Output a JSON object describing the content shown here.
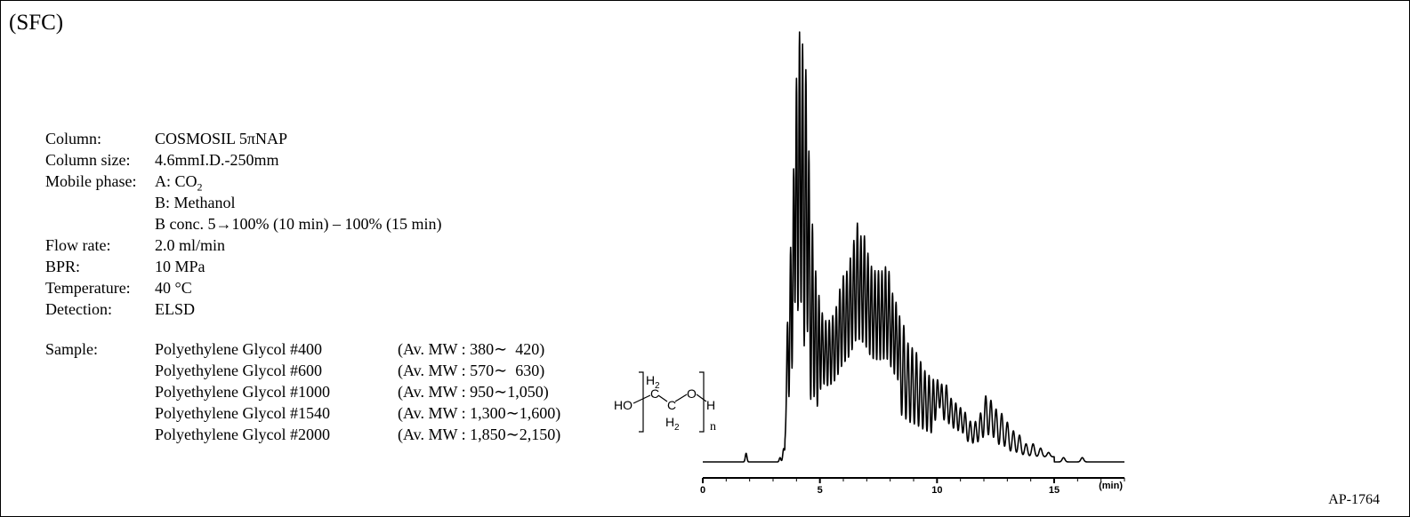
{
  "page_title": "(SFC)",
  "ref_code": "AP-1764",
  "conditions": [
    {
      "label": "Column:",
      "value": "COSMOSIL  5πNAP"
    },
    {
      "label": "Column size:",
      "value": "4.6mmI.D.-250mm"
    },
    {
      "label": "Mobile phase:",
      "value": "A: CO",
      "sub": "2"
    },
    {
      "label": "",
      "value": "B: Methanol"
    },
    {
      "label": "",
      "value": "B conc. 5→100% (10 min) – 100% (15 min)"
    },
    {
      "label": "Flow rate:",
      "value": "2.0 ml/min"
    },
    {
      "label": "BPR:",
      "value": "10 MPa"
    },
    {
      "label": "Temperature:",
      "value": "40 °C"
    },
    {
      "label": "Detection:",
      "value": "ELSD"
    }
  ],
  "sample_label": "Sample:",
  "samples": [
    {
      "name": "Polyethylene Glycol #400",
      "mw": "(Av. MW : 380∼  420)"
    },
    {
      "name": "Polyethylene Glycol #600",
      "mw": "(Av. MW : 570∼  630)"
    },
    {
      "name": "Polyethylene Glycol #1000",
      "mw": "(Av. MW : 950∼1,050)"
    },
    {
      "name": "Polyethylene Glycol #1540",
      "mw": "(Av. MW : 1,300∼1,600)"
    },
    {
      "name": "Polyethylene Glycol #2000",
      "mw": "(Av. MW : 1,850∼2,150)"
    }
  ],
  "structure": {
    "ho": "HO",
    "top_ch2": "H",
    "top_ch2_sub": "2",
    "c": "C",
    "o": "O",
    "bottom_ch2": "H",
    "bottom_ch2_sub": "2",
    "h": "H",
    "n": "n"
  },
  "chart_data": {
    "type": "line",
    "title": "",
    "xlabel": "(min)",
    "ylabel": "",
    "xlim": [
      0,
      18
    ],
    "ylim": [
      0,
      1
    ],
    "grid": false,
    "x_ticks": [
      0,
      5,
      10,
      15
    ],
    "series": [
      {
        "points": [
          [
            0,
            0.0
          ],
          [
            1.85,
            0.02
          ],
          [
            2.0,
            0.0
          ],
          [
            3.3,
            0.01
          ],
          [
            3.45,
            0.03
          ],
          [
            3.55,
            0.05
          ],
          [
            3.62,
            0.3
          ],
          [
            3.75,
            0.48
          ],
          [
            3.88,
            0.66
          ],
          [
            4.0,
            0.87
          ],
          [
            4.13,
            0.98
          ],
          [
            4.26,
            0.95
          ],
          [
            4.4,
            0.89
          ],
          [
            4.53,
            0.7
          ],
          [
            4.68,
            0.53
          ],
          [
            4.82,
            0.42
          ],
          [
            4.96,
            0.36
          ],
          [
            5.1,
            0.32
          ],
          [
            5.25,
            0.3
          ],
          [
            5.4,
            0.3
          ],
          [
            5.55,
            0.31
          ],
          [
            5.7,
            0.33
          ],
          [
            5.85,
            0.37
          ],
          [
            6.0,
            0.4
          ],
          [
            6.15,
            0.41
          ],
          [
            6.3,
            0.44
          ],
          [
            6.45,
            0.48
          ],
          [
            6.6,
            0.52
          ],
          [
            6.75,
            0.49
          ],
          [
            6.9,
            0.49
          ],
          [
            7.05,
            0.45
          ],
          [
            7.2,
            0.42
          ],
          [
            7.35,
            0.41
          ],
          [
            7.5,
            0.41
          ],
          [
            7.65,
            0.41
          ],
          [
            7.8,
            0.42
          ],
          [
            7.95,
            0.41
          ],
          [
            8.1,
            0.36
          ],
          [
            8.25,
            0.34
          ],
          [
            8.4,
            0.31
          ],
          [
            8.58,
            0.29
          ],
          [
            8.76,
            0.25
          ],
          [
            8.94,
            0.24
          ],
          [
            9.12,
            0.23
          ],
          [
            9.3,
            0.21
          ],
          [
            9.48,
            0.19
          ],
          [
            9.66,
            0.18
          ],
          [
            9.84,
            0.17
          ],
          [
            10.02,
            0.17
          ],
          [
            10.2,
            0.16
          ],
          [
            10.4,
            0.16
          ],
          [
            10.6,
            0.13
          ],
          [
            10.8,
            0.12
          ],
          [
            11.0,
            0.11
          ],
          [
            11.2,
            0.1
          ],
          [
            11.42,
            0.08
          ],
          [
            11.64,
            0.08
          ],
          [
            11.86,
            0.1
          ],
          [
            12.08,
            0.14
          ],
          [
            12.3,
            0.13
          ],
          [
            12.52,
            0.11
          ],
          [
            12.76,
            0.1
          ],
          [
            13.0,
            0.08
          ],
          [
            13.26,
            0.06
          ],
          [
            13.52,
            0.05
          ],
          [
            13.8,
            0.03
          ],
          [
            14.1,
            0.03
          ],
          [
            14.42,
            0.02
          ],
          [
            14.76,
            0.01
          ],
          [
            15.1,
            0.0
          ],
          [
            15.4,
            0.01
          ],
          [
            15.75,
            0.0
          ],
          [
            16.2,
            0.01
          ],
          [
            16.8,
            0.0
          ],
          [
            18.0,
            0.0
          ]
        ]
      }
    ]
  }
}
